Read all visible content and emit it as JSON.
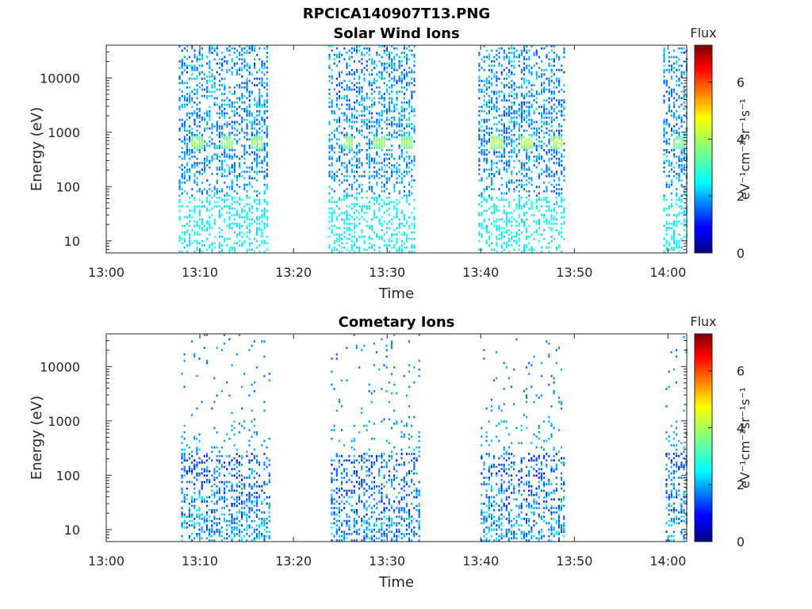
{
  "figure_title": "RPCICA140907T13.PNG",
  "chart_data": [
    {
      "type": "heatmap",
      "title": "Solar Wind Ions",
      "xlabel": "Time",
      "ylabel": "Energy (eV)",
      "x_ticks": [
        "13:00",
        "13:10",
        "13:20",
        "13:30",
        "13:40",
        "13:50",
        "14:00"
      ],
      "xlim": [
        "13:00",
        "14:02"
      ],
      "y_scale": "log",
      "y_ticks": [
        "10",
        "100",
        "1000",
        "10000"
      ],
      "ylim": [
        6,
        40000
      ],
      "colorbar": {
        "title": "Flux",
        "label": "eV⁻¹cm⁻²sr⁻¹s⁻¹",
        "ticks": [
          "0",
          "2",
          "4",
          "6"
        ],
        "range": [
          0,
          7.3
        ],
        "colormap": "jet"
      },
      "bursts": [
        {
          "start": "13:07:45",
          "end": "13:17:15",
          "peaks": [
            "13:09:30",
            "13:12:45",
            "13:16:00"
          ],
          "peak_energy_eV": 620,
          "peak_flux": 4.0
        },
        {
          "start": "13:23:45",
          "end": "13:33:00",
          "peaks": [
            "13:25:45",
            "13:29:00",
            "13:32:00"
          ],
          "peak_energy_eV": 620,
          "peak_flux": 4.0
        },
        {
          "start": "13:39:45",
          "end": "13:49:00",
          "peaks": [
            "13:41:30",
            "13:44:45",
            "13:48:00"
          ],
          "peak_energy_eV": 620,
          "peak_flux": 4.2
        },
        {
          "start": "13:59:30",
          "end": "14:02:00",
          "peaks": [
            "14:01:00"
          ],
          "peak_energy_eV": 620,
          "peak_flux": 3.8
        }
      ]
    },
    {
      "type": "heatmap",
      "title": "Cometary Ions",
      "xlabel": "Time",
      "ylabel": "Energy (eV)",
      "x_ticks": [
        "13:00",
        "13:10",
        "13:20",
        "13:30",
        "13:40",
        "13:50",
        "14:00"
      ],
      "xlim": [
        "13:00",
        "14:02"
      ],
      "y_scale": "log",
      "y_ticks": [
        "10",
        "100",
        "1000",
        "10000"
      ],
      "ylim": [
        6,
        40000
      ],
      "colorbar": {
        "title": "Flux",
        "label": "eV⁻¹cm⁻²sr⁻¹s⁻¹",
        "ticks": [
          "0",
          "2",
          "4",
          "6"
        ],
        "range": [
          0,
          7.3
        ],
        "colormap": "jet"
      },
      "bursts": [
        {
          "start": "13:08:00",
          "end": "13:17:30",
          "peaks": [
            "13:09:30",
            "13:12:45",
            "13:16:00"
          ],
          "peak_energy_eV": 15,
          "peak_flux": 2.6
        },
        {
          "start": "13:24:00",
          "end": "13:33:30",
          "peaks": [
            "13:25:45",
            "13:29:00",
            "13:32:00"
          ],
          "peak_energy_eV": 15,
          "peak_flux": 2.6
        },
        {
          "start": "13:40:00",
          "end": "13:49:00",
          "peaks": [
            "13:41:30",
            "13:44:45",
            "13:48:00"
          ],
          "peak_energy_eV": 15,
          "peak_flux": 2.6
        },
        {
          "start": "13:59:45",
          "end": "14:02:00",
          "peaks": [
            "14:01:00"
          ],
          "peak_energy_eV": 15,
          "peak_flux": 2.6
        }
      ]
    }
  ]
}
